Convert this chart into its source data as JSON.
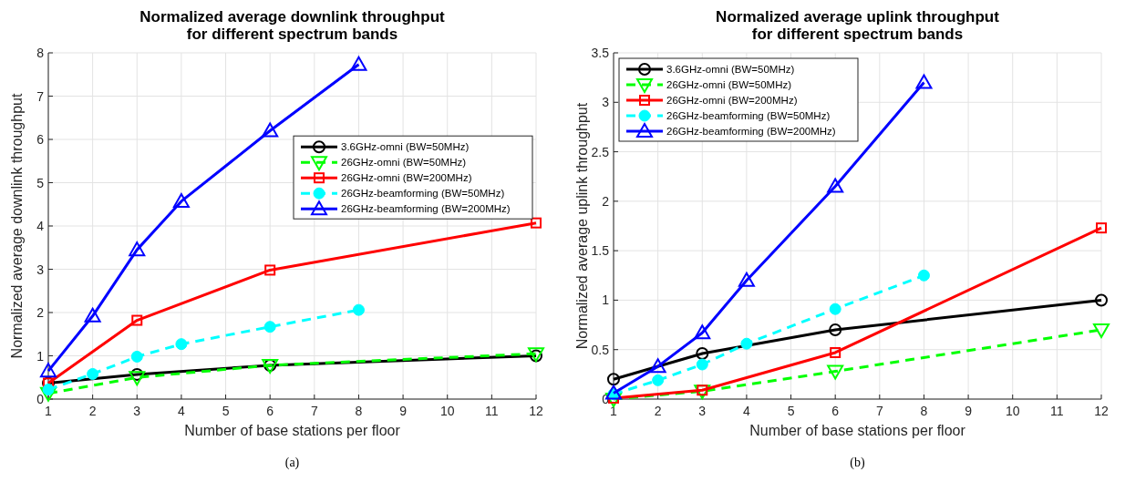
{
  "chart_data": [
    {
      "type": "line",
      "title": "Normalized average downlink throughput\nfor different spectrum bands",
      "xlabel": "Number of base stations per floor",
      "ylabel": "Normalized average downlink throughput",
      "xlim": [
        1,
        12
      ],
      "xticks": [
        1,
        2,
        3,
        4,
        5,
        6,
        7,
        8,
        9,
        10,
        11,
        12
      ],
      "ylim": [
        0,
        8
      ],
      "yticks": [
        0,
        1,
        2,
        3,
        4,
        5,
        6,
        7,
        8
      ],
      "grid": true,
      "legend": "right",
      "annotations": [
        "(a)"
      ],
      "series": [
        {
          "name": "3.6GHz-omni (BW=50MHz)",
          "color": "#000000",
          "marker": "circle",
          "line_style": "solid",
          "x": [
            1,
            3,
            6,
            12
          ],
          "values": [
            0.37,
            0.57,
            0.78,
            1.0
          ]
        },
        {
          "name": "26GHz-omni (BW=50MHz)",
          "color": "#00ff00",
          "marker": "triangle-down",
          "line_style": "dashed",
          "x": [
            1,
            3,
            6,
            12
          ],
          "values": [
            0.13,
            0.5,
            0.78,
            1.05
          ]
        },
        {
          "name": "26GHz-omni (BW=200MHz)",
          "color": "#ff0000",
          "marker": "square",
          "line_style": "solid",
          "x": [
            1,
            3,
            6,
            12
          ],
          "values": [
            0.37,
            1.82,
            2.98,
            4.07
          ]
        },
        {
          "name": "26GHz-beamforming (BW=50MHz)",
          "color": "#00ffff",
          "marker": "circle-filled",
          "line_style": "dashed",
          "x": [
            1,
            2,
            3,
            4,
            6,
            8
          ],
          "values": [
            0.22,
            0.58,
            0.98,
            1.27,
            1.67,
            2.06
          ]
        },
        {
          "name": "26GHz-beamforming (BW=200MHz)",
          "color": "#0000ff",
          "marker": "triangle",
          "line_style": "solid",
          "x": [
            1,
            2,
            3,
            4,
            6,
            8
          ],
          "values": [
            0.65,
            1.92,
            3.45,
            4.57,
            6.2,
            7.73
          ]
        }
      ]
    },
    {
      "type": "line",
      "title": "Normalized average uplink throughput\nfor different spectrum bands",
      "xlabel": "Number of base stations per floor",
      "ylabel": "Normalized average uplink throughput",
      "xlim": [
        1,
        12
      ],
      "xticks": [
        1,
        2,
        3,
        4,
        5,
        6,
        7,
        8,
        9,
        10,
        11,
        12
      ],
      "ylim": [
        0,
        3.5
      ],
      "yticks": [
        0,
        0.5,
        1,
        1.5,
        2,
        2.5,
        3,
        3.5
      ],
      "grid": true,
      "legend": "top left",
      "annotations": [
        "(b)"
      ],
      "series": [
        {
          "name": "3.6GHz-omni (BW=50MHz)",
          "color": "#000000",
          "marker": "circle",
          "line_style": "solid",
          "x": [
            1,
            3,
            6,
            12
          ],
          "values": [
            0.2,
            0.46,
            0.7,
            1.0
          ]
        },
        {
          "name": "26GHz-omni (BW=50MHz)",
          "color": "#00ff00",
          "marker": "triangle-down",
          "line_style": "dashed",
          "x": [
            1,
            3,
            6,
            12
          ],
          "values": [
            0.0,
            0.08,
            0.28,
            0.7
          ]
        },
        {
          "name": "26GHz-omni (BW=200MHz)",
          "color": "#ff0000",
          "marker": "square",
          "line_style": "solid",
          "x": [
            1,
            3,
            6,
            12
          ],
          "values": [
            0.01,
            0.09,
            0.47,
            1.73
          ]
        },
        {
          "name": "26GHz-beamforming (BW=50MHz)",
          "color": "#00ffff",
          "marker": "circle-filled",
          "line_style": "dashed",
          "x": [
            1,
            2,
            3,
            4,
            6,
            8
          ],
          "values": [
            0.05,
            0.19,
            0.35,
            0.56,
            0.91,
            1.25
          ]
        },
        {
          "name": "26GHz-beamforming (BW=200MHz)",
          "color": "#0000ff",
          "marker": "triangle",
          "line_style": "solid",
          "x": [
            1,
            2,
            3,
            4,
            6,
            8
          ],
          "values": [
            0.06,
            0.33,
            0.67,
            1.2,
            2.15,
            3.2
          ]
        }
      ]
    }
  ]
}
